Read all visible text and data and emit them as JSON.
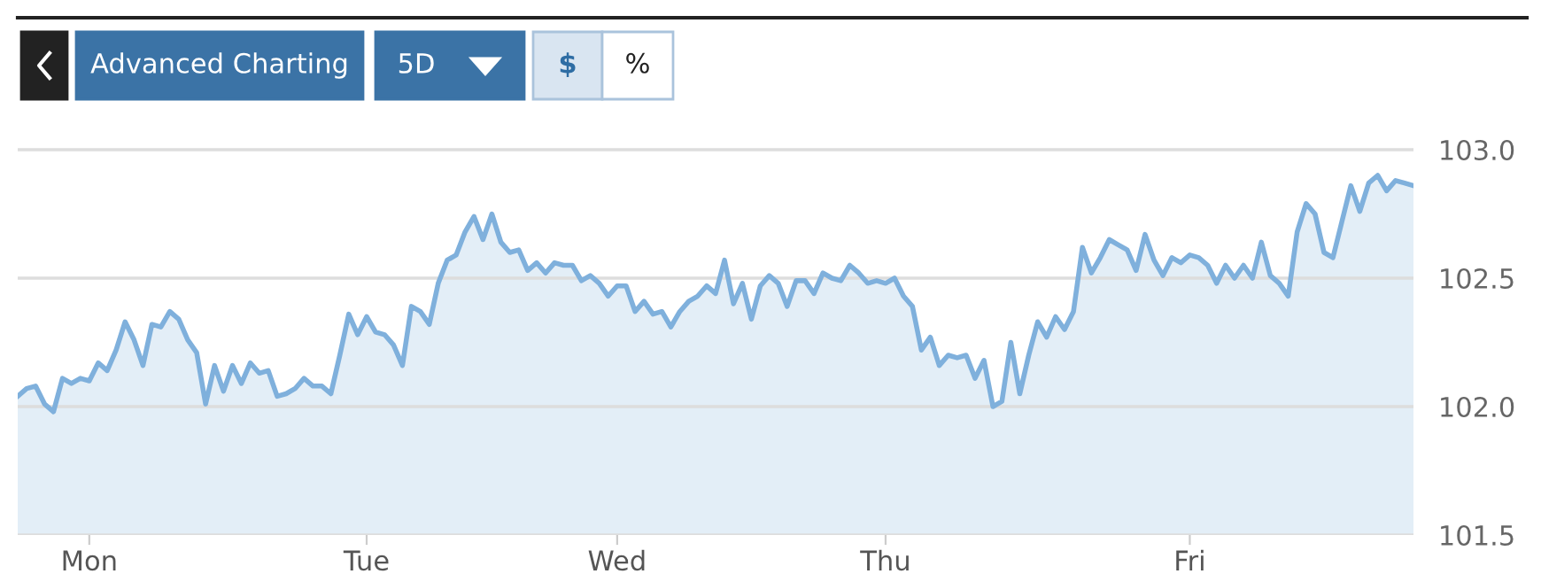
{
  "chart_data": {
    "type": "area",
    "annotations": [
      "Advanced Charting",
      "5D",
      "$",
      "%"
    ],
    "categories": [
      null,
      null,
      null,
      null,
      null,
      null,
      null,
      null,
      "Mon",
      null,
      null,
      null,
      null,
      null,
      null,
      null,
      null,
      null,
      null,
      null,
      null,
      null,
      null,
      null,
      null,
      null,
      null,
      null,
      null,
      null,
      null,
      null,
      null,
      null,
      null,
      null,
      null,
      null,
      null,
      "Tue",
      null,
      null,
      null,
      null,
      null,
      null,
      null,
      null,
      null,
      null,
      null,
      null,
      null,
      null,
      null,
      null,
      null,
      null,
      null,
      null,
      null,
      null,
      null,
      null,
      null,
      null,
      null,
      "Wed",
      null,
      null,
      null,
      null,
      null,
      null,
      null,
      null,
      null,
      null,
      null,
      null,
      null,
      null,
      null,
      null,
      null,
      null,
      null,
      null,
      null,
      null,
      null,
      null,
      null,
      null,
      null,
      null,
      null,
      "Thu",
      null,
      null,
      null,
      null,
      null,
      null,
      null,
      null,
      null,
      null,
      null,
      null,
      null,
      null,
      null,
      null,
      null,
      null,
      null,
      null,
      null,
      null,
      null,
      null,
      null,
      null,
      null,
      null,
      null,
      null,
      null,
      null,
      null,
      "Fri",
      null,
      null,
      null,
      null,
      null,
      null,
      null,
      null,
      null,
      null,
      null,
      null,
      null,
      null,
      null,
      null,
      null,
      null,
      null,
      null,
      null,
      null,
      null,
      null,
      null
    ],
    "series": [
      {
        "color": "#7fb0dc",
        "values": [
          102.04,
          102.07,
          102.08,
          102.01,
          101.98,
          102.11,
          102.09,
          102.11,
          102.1,
          102.17,
          102.14,
          102.22,
          102.33,
          102.26,
          102.16,
          102.32,
          102.31,
          102.37,
          102.34,
          102.26,
          102.21,
          102.01,
          102.16,
          102.06,
          102.16,
          102.09,
          102.17,
          102.13,
          102.14,
          102.04,
          102.05,
          102.07,
          102.11,
          102.08,
          102.08,
          102.05,
          102.2,
          102.36,
          102.28,
          102.35,
          102.29,
          102.28,
          102.24,
          102.16,
          102.39,
          102.37,
          102.32,
          102.48,
          102.57,
          102.59,
          102.68,
          102.74,
          102.65,
          102.75,
          102.64,
          102.6,
          102.61,
          102.53,
          102.56,
          102.52,
          102.56,
          102.55,
          102.55,
          102.49,
          102.51,
          102.48,
          102.43,
          102.47,
          102.47,
          102.37,
          102.41,
          102.36,
          102.37,
          102.31,
          102.37,
          102.41,
          102.43,
          102.47,
          102.44,
          102.57,
          102.4,
          102.48,
          102.34,
          102.47,
          102.51,
          102.48,
          102.39,
          102.49,
          102.49,
          102.44,
          102.52,
          102.5,
          102.49,
          102.55,
          102.52,
          102.48,
          102.49,
          102.48,
          102.5,
          102.43,
          102.39,
          102.22,
          102.27,
          102.16,
          102.2,
          102.19,
          102.2,
          102.11,
          102.18,
          102.0,
          102.02,
          102.25,
          102.05,
          102.2,
          102.33,
          102.27,
          102.35,
          102.3,
          102.37,
          102.62,
          102.52,
          102.58,
          102.65,
          102.63,
          102.61,
          102.53,
          102.67,
          102.57,
          102.51,
          102.58,
          102.56,
          102.59,
          102.58,
          102.55,
          102.48,
          102.55,
          102.5,
          102.55,
          102.5,
          102.64,
          102.51,
          102.48,
          102.43,
          102.68,
          102.79,
          102.75,
          102.6,
          102.58,
          102.72,
          102.86,
          102.76,
          102.87,
          102.9,
          102.84,
          102.88,
          102.87,
          102.86
        ]
      }
    ],
    "ylim": [
      101.5,
      103.5
    ],
    "yticks": [
      {
        "value": 101.5,
        "label": "101.5"
      },
      {
        "value": 102.0,
        "label": "102.0"
      },
      {
        "value": 102.5,
        "label": "102.5"
      },
      {
        "value": 103.0,
        "label": "103.0"
      }
    ],
    "grid": "y",
    "legend": false,
    "marker": "none",
    "line_style": "solid"
  }
}
